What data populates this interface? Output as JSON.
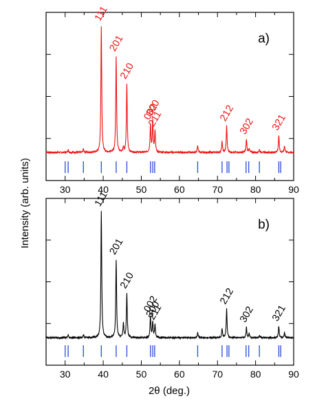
{
  "chart_data": {
    "type": "line",
    "xlabel": "2θ (deg.)",
    "ylabel": "Intensity (arb. units)",
    "xlim": [
      25,
      90
    ],
    "x_ticks": [
      30,
      40,
      50,
      60,
      70,
      80,
      90
    ],
    "reference_color": "#3355dd",
    "reference_lines": [
      30.0,
      30.8,
      34.8,
      39.5,
      43.4,
      46.2,
      52.4,
      53.0,
      53.5,
      64.8,
      71.2,
      72.5,
      73.0,
      77.5,
      78.2,
      81.0,
      86.1,
      86.6
    ],
    "panels": [
      {
        "label": "a)",
        "color": "#ee1111",
        "ylim": [
          0,
          1.0
        ],
        "baseline": 0.03,
        "peaks": [
          {
            "x": 30.8,
            "h": 0.02
          },
          {
            "x": 34.8,
            "h": 0.025
          },
          {
            "x": 39.5,
            "h": 0.96,
            "label": "111"
          },
          {
            "x": 43.4,
            "h": 0.73,
            "label": "201"
          },
          {
            "x": 45.3,
            "h": 0.04
          },
          {
            "x": 46.2,
            "h": 0.52,
            "label": "210"
          },
          {
            "x": 52.4,
            "h": 0.21,
            "label": "002"
          },
          {
            "x": 53.0,
            "h": 0.24,
            "label": "300"
          },
          {
            "x": 53.6,
            "h": 0.16,
            "label": "211"
          },
          {
            "x": 64.8,
            "h": 0.05
          },
          {
            "x": 71.2,
            "h": 0.08
          },
          {
            "x": 72.4,
            "h": 0.2,
            "label": "212"
          },
          {
            "x": 77.6,
            "h": 0.1,
            "label": "302"
          },
          {
            "x": 78.3,
            "h": 0.03
          },
          {
            "x": 81.0,
            "h": 0.02
          },
          {
            "x": 86.1,
            "h": 0.13,
            "label": "321"
          },
          {
            "x": 87.6,
            "h": 0.05
          }
        ]
      },
      {
        "label": "b)",
        "color": "#000000",
        "ylim": [
          0,
          1.0
        ],
        "baseline": 0.03,
        "peaks": [
          {
            "x": 30.8,
            "h": 0.02
          },
          {
            "x": 34.8,
            "h": 0.02
          },
          {
            "x": 39.5,
            "h": 0.97,
            "label": "111"
          },
          {
            "x": 43.4,
            "h": 0.6,
            "label": "201"
          },
          {
            "x": 45.3,
            "h": 0.11
          },
          {
            "x": 46.2,
            "h": 0.34,
            "label": "210"
          },
          {
            "x": 52.4,
            "h": 0.16,
            "label": "002"
          },
          {
            "x": 53.0,
            "h": 0.12,
            "label": "300"
          },
          {
            "x": 53.6,
            "h": 0.1,
            "label": "211"
          },
          {
            "x": 64.8,
            "h": 0.04
          },
          {
            "x": 71.2,
            "h": 0.07
          },
          {
            "x": 72.4,
            "h": 0.22,
            "label": "212"
          },
          {
            "x": 77.6,
            "h": 0.08,
            "label": "302"
          },
          {
            "x": 78.3,
            "h": 0.03
          },
          {
            "x": 81.0,
            "h": 0.02
          },
          {
            "x": 86.1,
            "h": 0.09,
            "label": "321"
          },
          {
            "x": 87.6,
            "h": 0.04
          }
        ]
      }
    ]
  }
}
